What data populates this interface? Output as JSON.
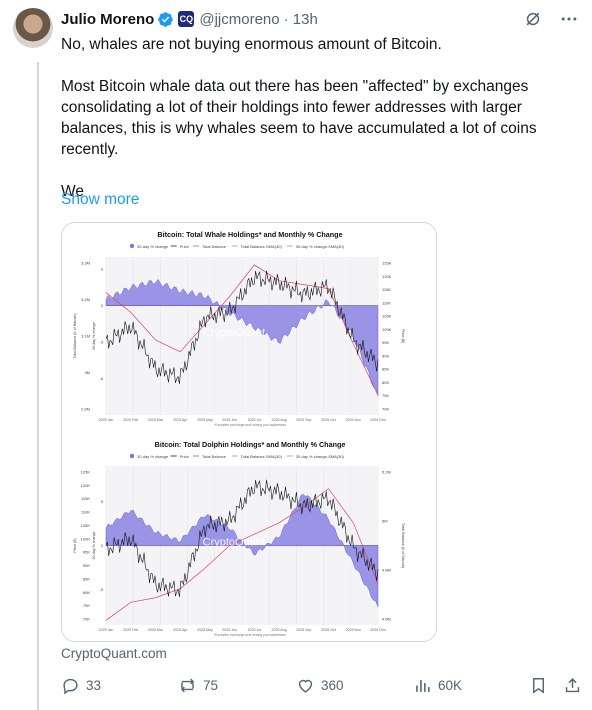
{
  "tweet": {
    "author_name": "Julio Moreno",
    "handle": "@jjcmoreno",
    "time": "· 13h",
    "org_badge": "CQ",
    "paragraphs": [
      "No, whales are not buying enormous amount of Bitcoin.",
      "Most Bitcoin whale data out there has been \"affected\" by exchanges consolidating a lot of their holdings into fewer addresses with larger balances, this is why whales seem to have accumulated a lot of coins recently.",
      "We"
    ],
    "show_more": "Show more",
    "source": "CryptoQuant.com"
  },
  "actions": {
    "replies": "33",
    "reposts": "75",
    "likes": "360",
    "views": "60K"
  },
  "icons": {
    "more": "more-horizontal-icon",
    "grok": "grok-icon",
    "verified": "verified-badge-icon",
    "reply": "reply-icon",
    "repost": "repost-icon",
    "like": "heart-icon",
    "views": "views-chart-icon",
    "bookmark": "bookmark-icon",
    "share": "share-icon"
  },
  "colors": {
    "link": "#1d9bf0",
    "muted": "#536471",
    "verified": "#1d9bf0",
    "area_fill": "#7b74e0",
    "price_line": "#111111",
    "balance_line": "#d6456b"
  },
  "chart_data": [
    {
      "type": "line",
      "title": "Bitcoin: Total Whale Holdings* and Monthly % Change",
      "legend": [
        "30-day % change",
        "Price",
        "Total Balance",
        "Total Balance-SMA(30)",
        "30-day % change-SMA(30)"
      ],
      "x": [
        "2025 Jan",
        "2025 Feb",
        "2025 Mar",
        "2025 Apr",
        "2025 May",
        "2025 Jun",
        "2025 Jul",
        "2025 Aug",
        "2025 Sep",
        "2025 Oct",
        "2025 Nov",
        "2025 Dec"
      ],
      "left_ticks": [
        "3.3M",
        "3.2M",
        "3.1M",
        "3M",
        "2.9M"
      ],
      "mid_ticks": [
        "3",
        "0",
        "-3",
        "-6"
      ],
      "right_ticks": [
        "125K",
        "120K",
        "115K",
        "110K",
        "105K",
        "100K",
        "95K",
        "90K",
        "85K",
        "80K",
        "75K",
        "70K"
      ],
      "left_label": "Total Balance (# of Bitcoin)",
      "mid_label": "30-day % change",
      "right_label": "Price ($)",
      "footnote": "*Excludes exchange and mining pool addresses",
      "watermark": "CryptoQuant",
      "series": [
        {
          "name": "Price",
          "values": [
            95,
            101,
            86,
            83,
            104,
            106,
            118,
            116,
            112,
            115,
            96,
            88
          ]
        },
        {
          "name": "30-day % change",
          "values": [
            0.5,
            1.5,
            2.0,
            1.2,
            0.8,
            -0.6,
            -1.8,
            -3.0,
            -1.0,
            0.4,
            -2.5,
            -7.5
          ]
        },
        {
          "name": "Total Balance",
          "values": [
            3.21,
            3.16,
            3.09,
            3.06,
            3.13,
            3.2,
            3.28,
            3.24,
            3.23,
            3.22,
            3.08,
            2.95
          ]
        }
      ]
    },
    {
      "type": "line",
      "title": "Bitcoin: Total Dolphin Holdings* and Monthly % Change",
      "legend": [
        "30-day % change",
        "Price",
        "Total Balance",
        "Total Balance-SMA(30)",
        "30-day % change-SMA(30)"
      ],
      "x": [
        "2025 Jan",
        "2025 Feb",
        "2025 Mar",
        "2025 Apr",
        "2025 May",
        "2025 Jun",
        "2025 Jul",
        "2025 Aug",
        "2025 Sep",
        "2025 Oct",
        "2025 Nov",
        "2025 Dec"
      ],
      "left_ticks": [
        "125K",
        "120K",
        "115K",
        "110K",
        "105K",
        "100K",
        "95K",
        "90K",
        "85K",
        "80K",
        "75K",
        "70K"
      ],
      "mid_ticks": [
        "5",
        "0",
        "-5"
      ],
      "right_ticks": [
        "5.2M",
        "5M",
        "4.8M",
        "4.6M"
      ],
      "left_label": "Price ($)",
      "mid_label": "30-day % change",
      "right_label": "Total Balance (# of Bitcoin)",
      "footnote": "*Excludes exchange and mining pool addresses",
      "watermark": "CryptoQuant",
      "series": [
        {
          "name": "Price",
          "values": [
            96,
            100,
            84,
            82,
            104,
            106,
            118,
            116,
            111,
            114,
            97,
            88
          ]
        },
        {
          "name": "30-day % change",
          "values": [
            2.0,
            4.0,
            1.5,
            0.5,
            3.5,
            2.0,
            -1.0,
            1.0,
            6.0,
            3.0,
            -2.0,
            -7.0
          ]
        },
        {
          "name": "Total Balance",
          "values": [
            4.62,
            4.7,
            4.72,
            4.76,
            4.85,
            4.95,
            5.0,
            5.05,
            5.12,
            5.2,
            5.05,
            4.78
          ]
        }
      ]
    }
  ]
}
